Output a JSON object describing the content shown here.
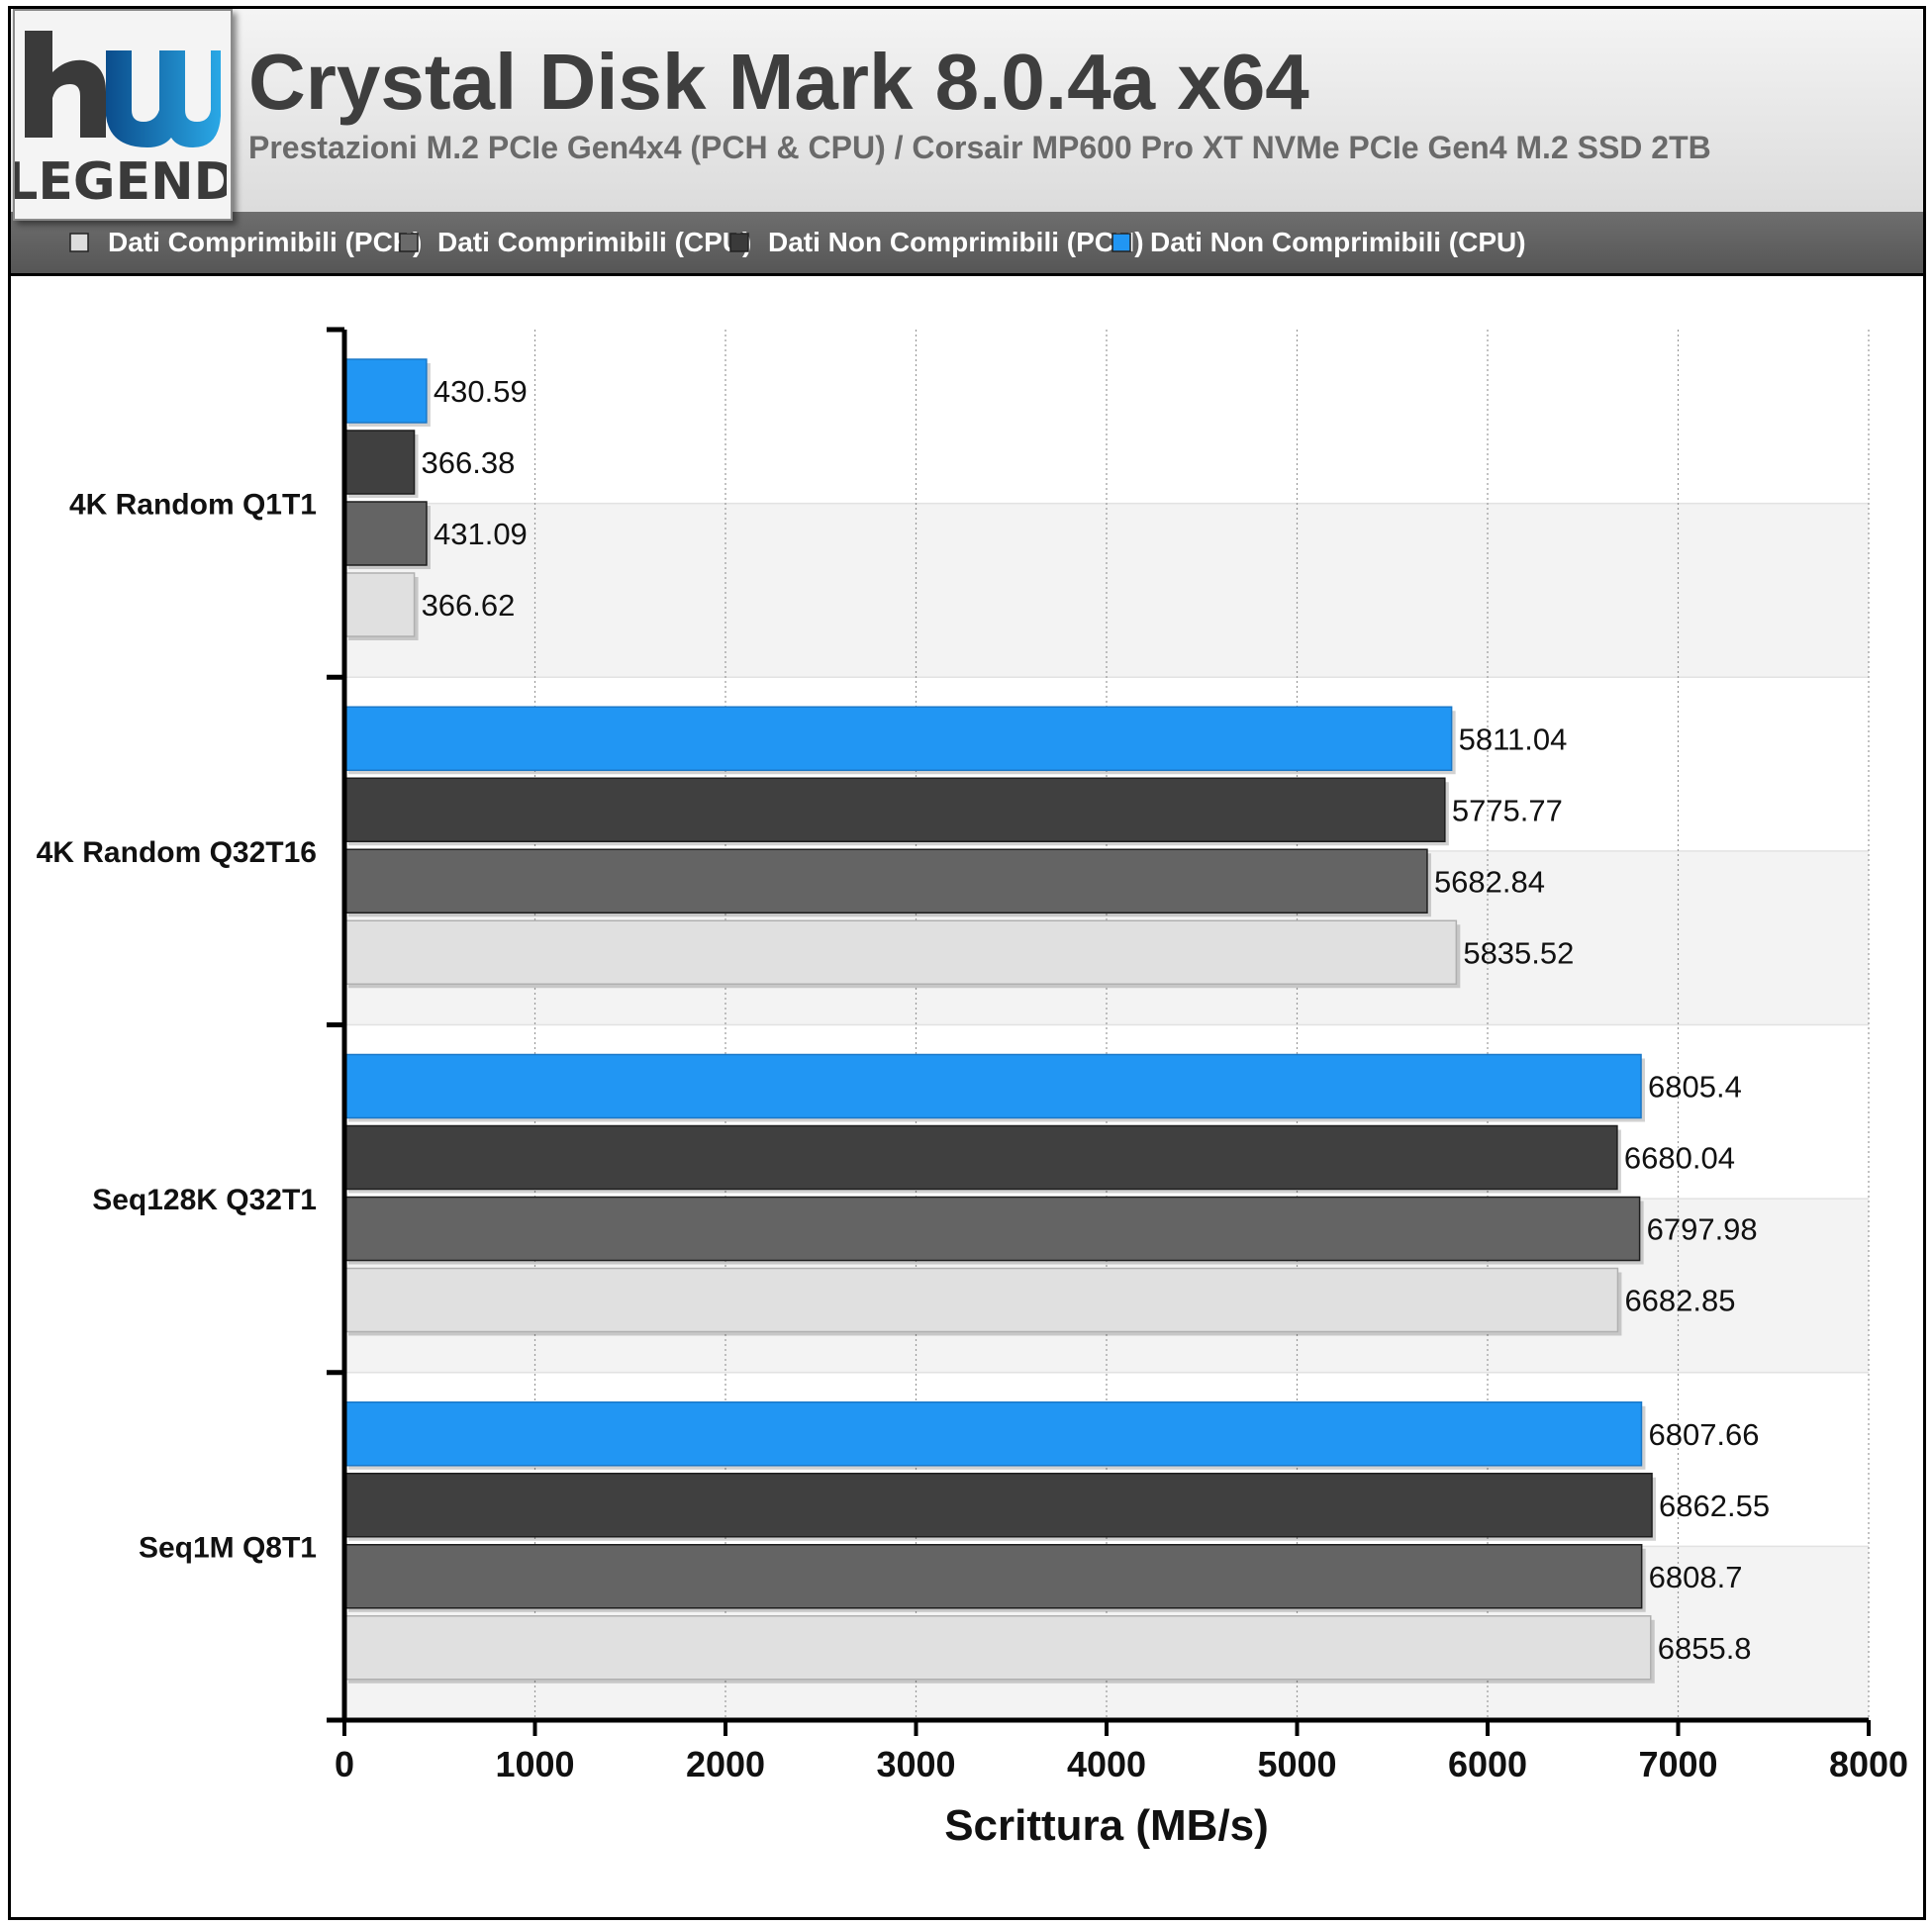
{
  "header": {
    "logo_text": "LEGEND",
    "title": "Crystal Disk Mark 8.0.4a x64",
    "subtitle": "Prestazioni M.2 PCIe Gen4x4 (PCH & CPU) / Corsair MP600 Pro XT NVMe PCIe Gen4 M.2 SSD 2TB"
  },
  "colors": {
    "blue": "#2196f3",
    "dark": "#404040",
    "mid": "#646464",
    "light": "#e0e0e0"
  },
  "chart_data": {
    "type": "bar",
    "orientation": "horizontal",
    "categories": [
      "4K Random Q1T1",
      "4K Random Q32T16",
      "Seq128K Q32T1",
      "Seq1M Q8T1"
    ],
    "series": [
      {
        "name": "Dati Comprimibili (PCH)",
        "color": "#e0e0e0",
        "legend_color": "#dddddd",
        "values": [
          366.62,
          5835.52,
          6682.85,
          6855.8
        ],
        "labels": [
          "366.62",
          "5835.52",
          "6682.85",
          "6855.8"
        ]
      },
      {
        "name": "Dati Comprimibili (CPU)",
        "color": "#646464",
        "legend_color": "#6a6a6a",
        "values": [
          431.09,
          5682.84,
          6797.98,
          6808.7
        ],
        "labels": [
          "431.09",
          "5682.84",
          "6797.98",
          "6808.7"
        ]
      },
      {
        "name": "Dati Non Comprimibili (PCH)",
        "color": "#404040",
        "legend_color": "#3a3a3a",
        "values": [
          366.38,
          5775.77,
          6680.04,
          6862.55
        ],
        "labels": [
          "366.38",
          "5775.77",
          "6680.04",
          "6862.55"
        ]
      },
      {
        "name": "Dati Non Comprimibili (CPU)",
        "color": "#2196f3",
        "legend_color": "#2196f3",
        "values": [
          430.59,
          5811.04,
          6805.4,
          6807.66
        ],
        "labels": [
          "430.59",
          "5811.04",
          "6805.4",
          "6807.66"
        ]
      }
    ],
    "xlabel": "Scrittura (MB/s)",
    "xlim": [
      0,
      8000
    ],
    "xticks": [
      0,
      1000,
      2000,
      3000,
      4000,
      5000,
      6000,
      7000,
      8000
    ],
    "grid": true,
    "legend_position": "top"
  }
}
